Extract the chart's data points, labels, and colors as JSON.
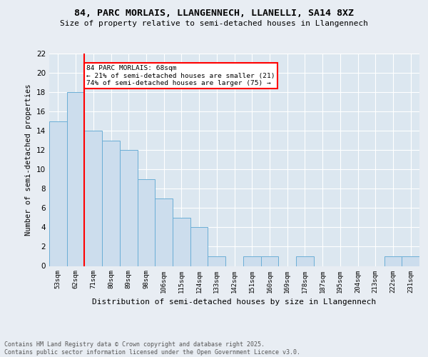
{
  "title": "84, PARC MORLAIS, LLANGENNECH, LLANELLI, SA14 8XZ",
  "subtitle": "Size of property relative to semi-detached houses in Llangennech",
  "xlabel": "Distribution of semi-detached houses by size in Llangennech",
  "ylabel": "Number of semi-detached properties",
  "categories": [
    "53sqm",
    "62sqm",
    "71sqm",
    "80sqm",
    "89sqm",
    "98sqm",
    "106sqm",
    "115sqm",
    "124sqm",
    "133sqm",
    "142sqm",
    "151sqm",
    "160sqm",
    "169sqm",
    "178sqm",
    "187sqm",
    "195sqm",
    "204sqm",
    "213sqm",
    "222sqm",
    "231sqm"
  ],
  "values": [
    15,
    18,
    14,
    13,
    12,
    9,
    7,
    5,
    4,
    1,
    0,
    1,
    1,
    0,
    1,
    0,
    0,
    0,
    0,
    1,
    1
  ],
  "bar_color": "#ccdded",
  "bar_edge_color": "#6baed6",
  "annotation_text": "84 PARC MORLAIS: 68sqm\n← 21% of semi-detached houses are smaller (21)\n74% of semi-detached houses are larger (75) →",
  "property_line_index": 1,
  "ylim": [
    0,
    22
  ],
  "yticks": [
    0,
    2,
    4,
    6,
    8,
    10,
    12,
    14,
    16,
    18,
    20,
    22
  ],
  "footer": "Contains HM Land Registry data © Crown copyright and database right 2025.\nContains public sector information licensed under the Open Government Licence v3.0.",
  "background_color": "#e8edf3",
  "plot_bg_color": "#dce7f0"
}
